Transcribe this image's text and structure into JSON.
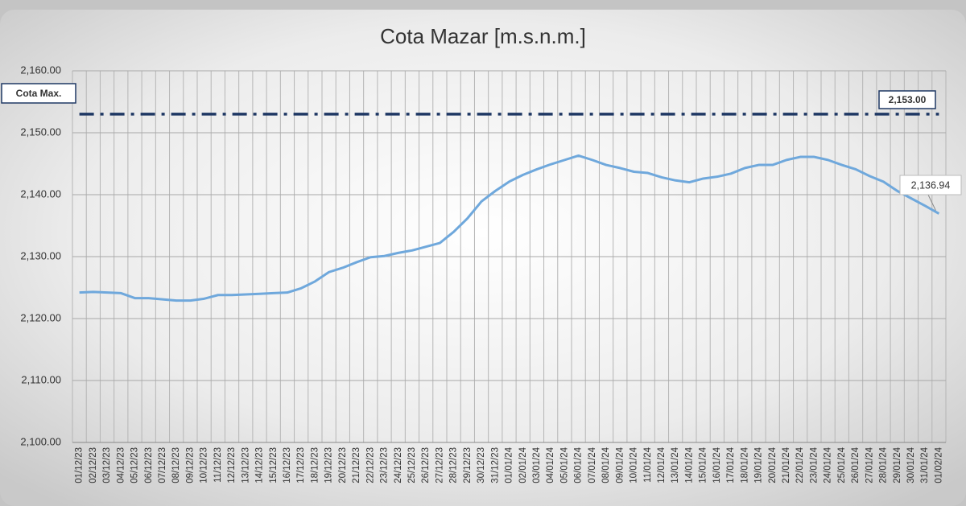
{
  "chart_data": {
    "type": "line",
    "title": "Cota Mazar [m.s.n.m.]",
    "categories": [
      "01/12/23",
      "02/12/23",
      "03/12/23",
      "04/12/23",
      "05/12/23",
      "06/12/23",
      "07/12/23",
      "08/12/23",
      "09/12/23",
      "10/12/23",
      "11/12/23",
      "12/12/23",
      "13/12/23",
      "14/12/23",
      "15/12/23",
      "16/12/23",
      "17/12/23",
      "18/12/23",
      "19/12/23",
      "20/12/23",
      "21/12/23",
      "22/12/23",
      "23/12/23",
      "24/12/23",
      "25/12/23",
      "26/12/23",
      "27/12/23",
      "28/12/23",
      "29/12/23",
      "30/12/23",
      "31/12/23",
      "01/01/24",
      "02/01/24",
      "03/01/24",
      "04/01/24",
      "05/01/24",
      "06/01/24",
      "07/01/24",
      "08/01/24",
      "09/01/24",
      "10/01/24",
      "11/01/24",
      "12/01/24",
      "13/01/24",
      "14/01/24",
      "15/01/24",
      "16/01/24",
      "17/01/24",
      "18/01/24",
      "19/01/24",
      "20/01/24",
      "21/01/24",
      "22/01/24",
      "23/01/24",
      "24/01/24",
      "25/01/24",
      "26/01/24",
      "27/01/24",
      "28/01/24",
      "29/01/24",
      "30/01/24",
      "31/01/24",
      "01/02/24"
    ],
    "series": [
      {
        "color": "#6fa8dc",
        "values": [
          2124.2,
          2124.3,
          2124.2,
          2124.1,
          2123.3,
          2123.3,
          2123.1,
          2122.9,
          2122.9,
          2123.2,
          2123.8,
          2123.8,
          2123.9,
          2124.0,
          2124.1,
          2124.2,
          2124.9,
          2126.0,
          2127.5,
          2128.2,
          2129.1,
          2129.9,
          2130.1,
          2130.6,
          2131.0,
          2131.6,
          2132.2,
          2134.0,
          2136.2,
          2138.9,
          2140.6,
          2142.1,
          2143.2,
          2144.1,
          2144.9,
          2145.6,
          2146.3,
          2145.6,
          2144.8,
          2144.3,
          2143.7,
          2143.5,
          2142.8,
          2142.3,
          2142.0,
          2142.6,
          2142.9,
          2143.4,
          2144.3,
          2144.8,
          2144.8,
          2145.6,
          2146.1,
          2146.1,
          2145.6,
          2144.8,
          2144.1,
          2143.0,
          2142.1,
          2140.6,
          2139.4,
          2138.2,
          2136.94
        ],
        "value_labels": [
          null,
          null,
          null,
          null,
          null,
          null,
          null,
          null,
          null,
          null,
          null,
          null,
          null,
          null,
          null,
          null,
          null,
          null,
          null,
          null,
          null,
          null,
          null,
          null,
          null,
          null,
          null,
          null,
          null,
          null,
          null,
          null,
          null,
          null,
          null,
          null,
          null,
          null,
          null,
          null,
          null,
          null,
          null,
          null,
          null,
          null,
          null,
          null,
          null,
          null,
          null,
          null,
          null,
          null,
          null,
          null,
          null,
          null,
          null,
          null,
          null,
          null,
          "2,136.94"
        ]
      },
      {
        "name": "Cota Max.",
        "color": "#1f3864",
        "values": [
          2153,
          2153,
          2153,
          2153,
          2153,
          2153,
          2153,
          2153,
          2153,
          2153,
          2153,
          2153,
          2153,
          2153,
          2153,
          2153,
          2153,
          2153,
          2153,
          2153,
          2153,
          2153,
          2153,
          2153,
          2153,
          2153,
          2153,
          2153,
          2153,
          2153,
          2153,
          2153,
          2153,
          2153,
          2153,
          2153,
          2153,
          2153,
          2153,
          2153,
          2153,
          2153,
          2153,
          2153,
          2153,
          2153,
          2153,
          2153,
          2153,
          2153,
          2153,
          2153,
          2153,
          2153,
          2153,
          2153,
          2153,
          2153,
          2153,
          2153,
          2153,
          2153,
          2153
        ],
        "value_labels": [
          null,
          null,
          null,
          null,
          null,
          null,
          null,
          null,
          null,
          null,
          null,
          null,
          null,
          null,
          null,
          null,
          null,
          null,
          null,
          null,
          null,
          null,
          null,
          null,
          null,
          null,
          null,
          null,
          null,
          null,
          null,
          null,
          null,
          null,
          null,
          null,
          null,
          null,
          null,
          null,
          null,
          null,
          null,
          null,
          null,
          null,
          null,
          null,
          null,
          null,
          null,
          null,
          null,
          null,
          null,
          null,
          null,
          null,
          null,
          null,
          null,
          null,
          "2,153.00"
        ]
      }
    ],
    "ylim": [
      2100,
      2160
    ],
    "yticks": [
      {
        "value": 2100,
        "label": "2,100.00"
      },
      {
        "value": 2110,
        "label": "2,110.00"
      },
      {
        "value": 2120,
        "label": "2,120.00"
      },
      {
        "value": 2130,
        "label": "2,130.00"
      },
      {
        "value": 2140,
        "label": "2,140.00"
      },
      {
        "value": 2150,
        "label": "2,150.00"
      },
      {
        "value": 2160,
        "label": "2,160.00"
      }
    ],
    "grid": true
  }
}
